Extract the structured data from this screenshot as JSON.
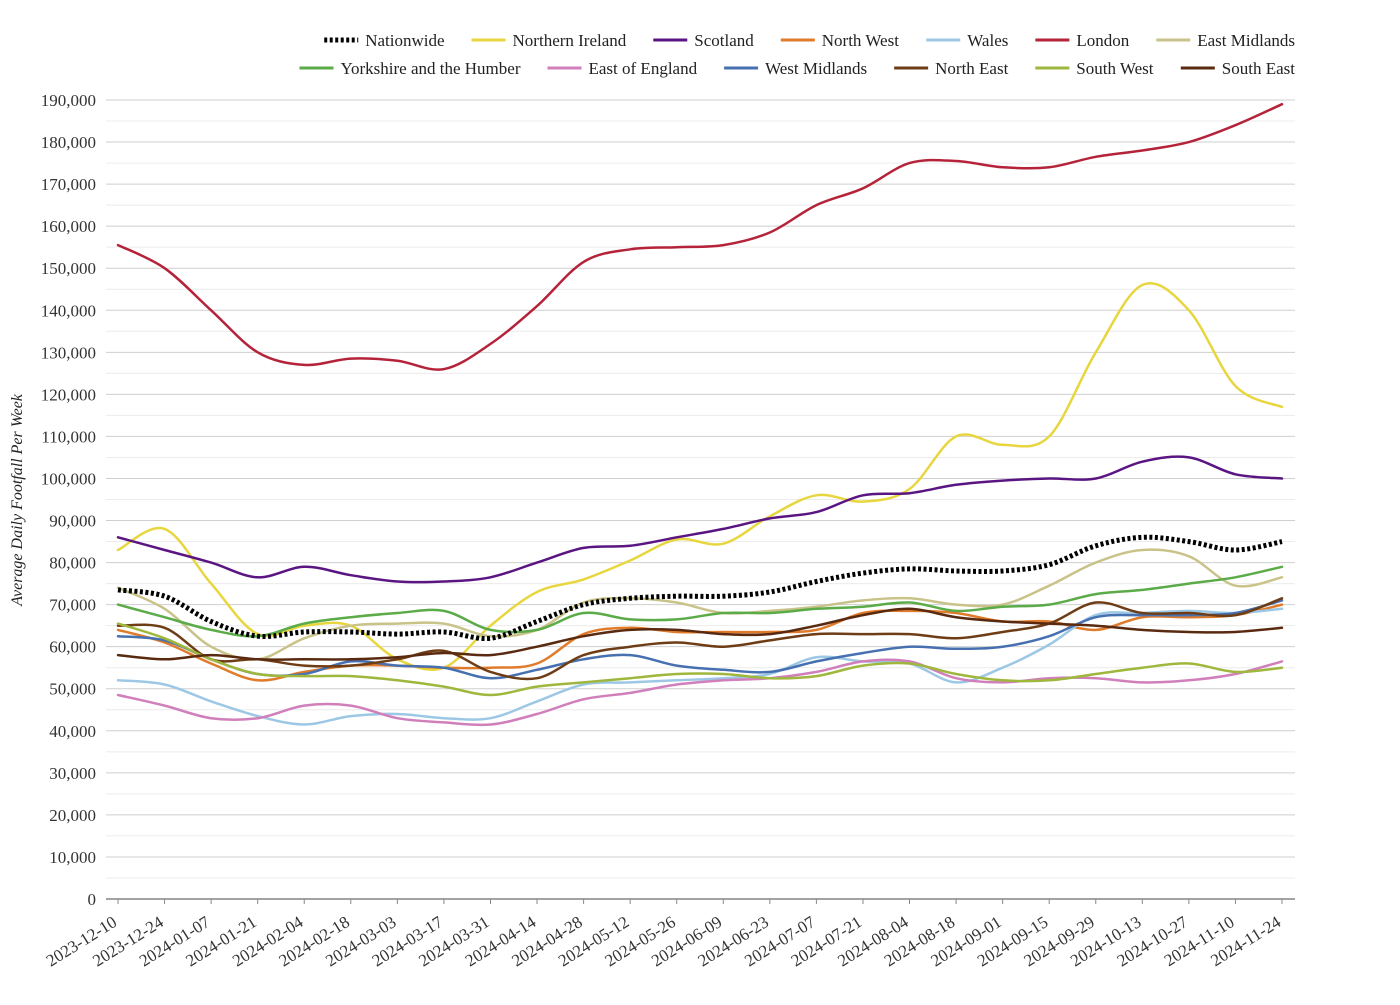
{
  "chart_data": {
    "type": "line",
    "ylabel": "Average Daily Footfall Per Week",
    "ylim": [
      0,
      190000
    ],
    "yticks": [
      0,
      10000,
      20000,
      30000,
      40000,
      50000,
      60000,
      70000,
      80000,
      90000,
      100000,
      110000,
      120000,
      130000,
      140000,
      150000,
      160000,
      170000,
      180000,
      190000
    ],
    "ytick_labels": [
      "0",
      "10,000",
      "20,000",
      "30,000",
      "40,000",
      "50,000",
      "60,000",
      "70,000",
      "80,000",
      "90,000",
      "100,000",
      "110,000",
      "120,000",
      "130,000",
      "140,000",
      "150,000",
      "160,000",
      "170,000",
      "180,000",
      "190,000"
    ],
    "grid": true,
    "legend_position": "top",
    "x": [
      "2023-12-10",
      "2023-12-24",
      "2024-01-07",
      "2024-01-21",
      "2024-02-04",
      "2024-02-18",
      "2024-03-03",
      "2024-03-17",
      "2024-03-31",
      "2024-04-14",
      "2024-04-28",
      "2024-05-12",
      "2024-05-26",
      "2024-06-09",
      "2024-06-23",
      "2024-07-07",
      "2024-07-21",
      "2024-08-04",
      "2024-08-18",
      "2024-09-01",
      "2024-09-15",
      "2024-09-29",
      "2024-10-13",
      "2024-10-27",
      "2024-11-10",
      "2024-11-24"
    ],
    "series": [
      {
        "name": "Nationwide",
        "color": "#000000",
        "dashed": true,
        "values": [
          73500,
          72000,
          66000,
          62500,
          63500,
          63500,
          63000,
          63500,
          62000,
          66000,
          70000,
          71500,
          72000,
          72000,
          73000,
          75500,
          77500,
          78500,
          78000,
          78000,
          79500,
          84000,
          86000,
          85000,
          83000,
          85000
        ]
      },
      {
        "name": "Northern Ireland",
        "color": "#e8d63f",
        "values": [
          83000,
          88000,
          75000,
          63000,
          65000,
          65000,
          57000,
          55000,
          65000,
          73000,
          76000,
          80500,
          85500,
          84500,
          91000,
          96000,
          94500,
          97500,
          110000,
          108000,
          110000,
          130000,
          146000,
          140000,
          122000,
          117000
        ]
      },
      {
        "name": "Scotland",
        "color": "#5b1582",
        "values": [
          86000,
          83000,
          80000,
          76500,
          79000,
          77000,
          75500,
          75500,
          76500,
          80000,
          83500,
          84000,
          86000,
          88000,
          90500,
          92000,
          96000,
          96500,
          98500,
          99500,
          100000,
          100000,
          104000,
          105000,
          101000,
          100000
        ]
      },
      {
        "name": "North West",
        "color": "#e07b2b",
        "values": [
          64000,
          61000,
          56000,
          52000,
          54000,
          55500,
          55500,
          55000,
          55000,
          56000,
          63000,
          64500,
          63500,
          63500,
          63500,
          64000,
          68000,
          68500,
          68000,
          66000,
          66000,
          64000,
          67000,
          67000,
          67500,
          70000
        ]
      },
      {
        "name": "Wales",
        "color": "#9dc8e5",
        "values": [
          52000,
          51000,
          47000,
          43500,
          41500,
          43500,
          44000,
          43000,
          43000,
          47000,
          51000,
          51500,
          52000,
          52500,
          53500,
          57500,
          56500,
          56000,
          51500,
          55000,
          60500,
          67500,
          68000,
          68500,
          68000,
          69000
        ]
      },
      {
        "name": "London",
        "color": "#b5233a",
        "values": [
          155500,
          150000,
          140000,
          130000,
          127000,
          128500,
          128000,
          126000,
          132000,
          141000,
          151500,
          154500,
          155000,
          155500,
          158500,
          165000,
          169000,
          175000,
          175500,
          174000,
          174000,
          176500,
          178000,
          180000,
          184000,
          189000
        ]
      },
      {
        "name": "East Midlands",
        "color": "#c9c38a",
        "values": [
          74000,
          69000,
          60000,
          57000,
          62000,
          65000,
          65500,
          65500,
          62500,
          64000,
          70500,
          71500,
          70500,
          68000,
          68500,
          69500,
          71000,
          71500,
          70000,
          70000,
          74500,
          80000,
          83000,
          81500,
          74500,
          76500
        ]
      },
      {
        "name": "Yorkshire and the Humber",
        "color": "#5bab48",
        "values": [
          70000,
          67000,
          64000,
          62500,
          65500,
          67000,
          68000,
          68500,
          64000,
          64000,
          68000,
          66500,
          66500,
          68000,
          68000,
          69000,
          69500,
          70500,
          68500,
          69500,
          70000,
          72500,
          73500,
          75000,
          76500,
          79000
        ]
      },
      {
        "name": "East of England",
        "color": "#d07fbb",
        "values": [
          48500,
          46000,
          43000,
          43000,
          46000,
          46000,
          43000,
          42000,
          41500,
          44000,
          47500,
          49000,
          51000,
          52000,
          52500,
          54000,
          56500,
          56500,
          52500,
          51500,
          52500,
          52500,
          51500,
          52000,
          53500,
          56500
        ]
      },
      {
        "name": "West Midlands",
        "color": "#4670b0",
        "values": [
          62500,
          61500,
          57000,
          53500,
          53500,
          56500,
          55500,
          55000,
          52500,
          54500,
          57000,
          58000,
          55500,
          54500,
          54000,
          56500,
          58500,
          60000,
          59500,
          60000,
          62500,
          67000,
          67500,
          67500,
          68000,
          71000
        ]
      },
      {
        "name": "North East",
        "color": "#6e3d16",
        "values": [
          65000,
          64500,
          57000,
          57000,
          55500,
          55500,
          57000,
          59000,
          54000,
          52500,
          58000,
          60000,
          61000,
          60000,
          61500,
          63000,
          63000,
          63000,
          62000,
          63500,
          65500,
          70500,
          68000,
          68000,
          67500,
          71500
        ]
      },
      {
        "name": "South West",
        "color": "#9eb73c",
        "values": [
          65500,
          62000,
          57000,
          53500,
          53000,
          53000,
          52000,
          50500,
          48500,
          50500,
          51500,
          52500,
          53500,
          53500,
          52500,
          53000,
          55500,
          56000,
          53500,
          52000,
          52000,
          53500,
          55000,
          56000,
          54000,
          55000
        ]
      },
      {
        "name": "South East",
        "color": "#5a2a10",
        "values": [
          58000,
          57000,
          58000,
          57000,
          57000,
          57000,
          57500,
          58500,
          58000,
          60000,
          62500,
          64000,
          64000,
          63000,
          63000,
          65000,
          67500,
          69000,
          67000,
          66000,
          65500,
          65000,
          64000,
          63500,
          63500,
          64500
        ]
      }
    ]
  }
}
